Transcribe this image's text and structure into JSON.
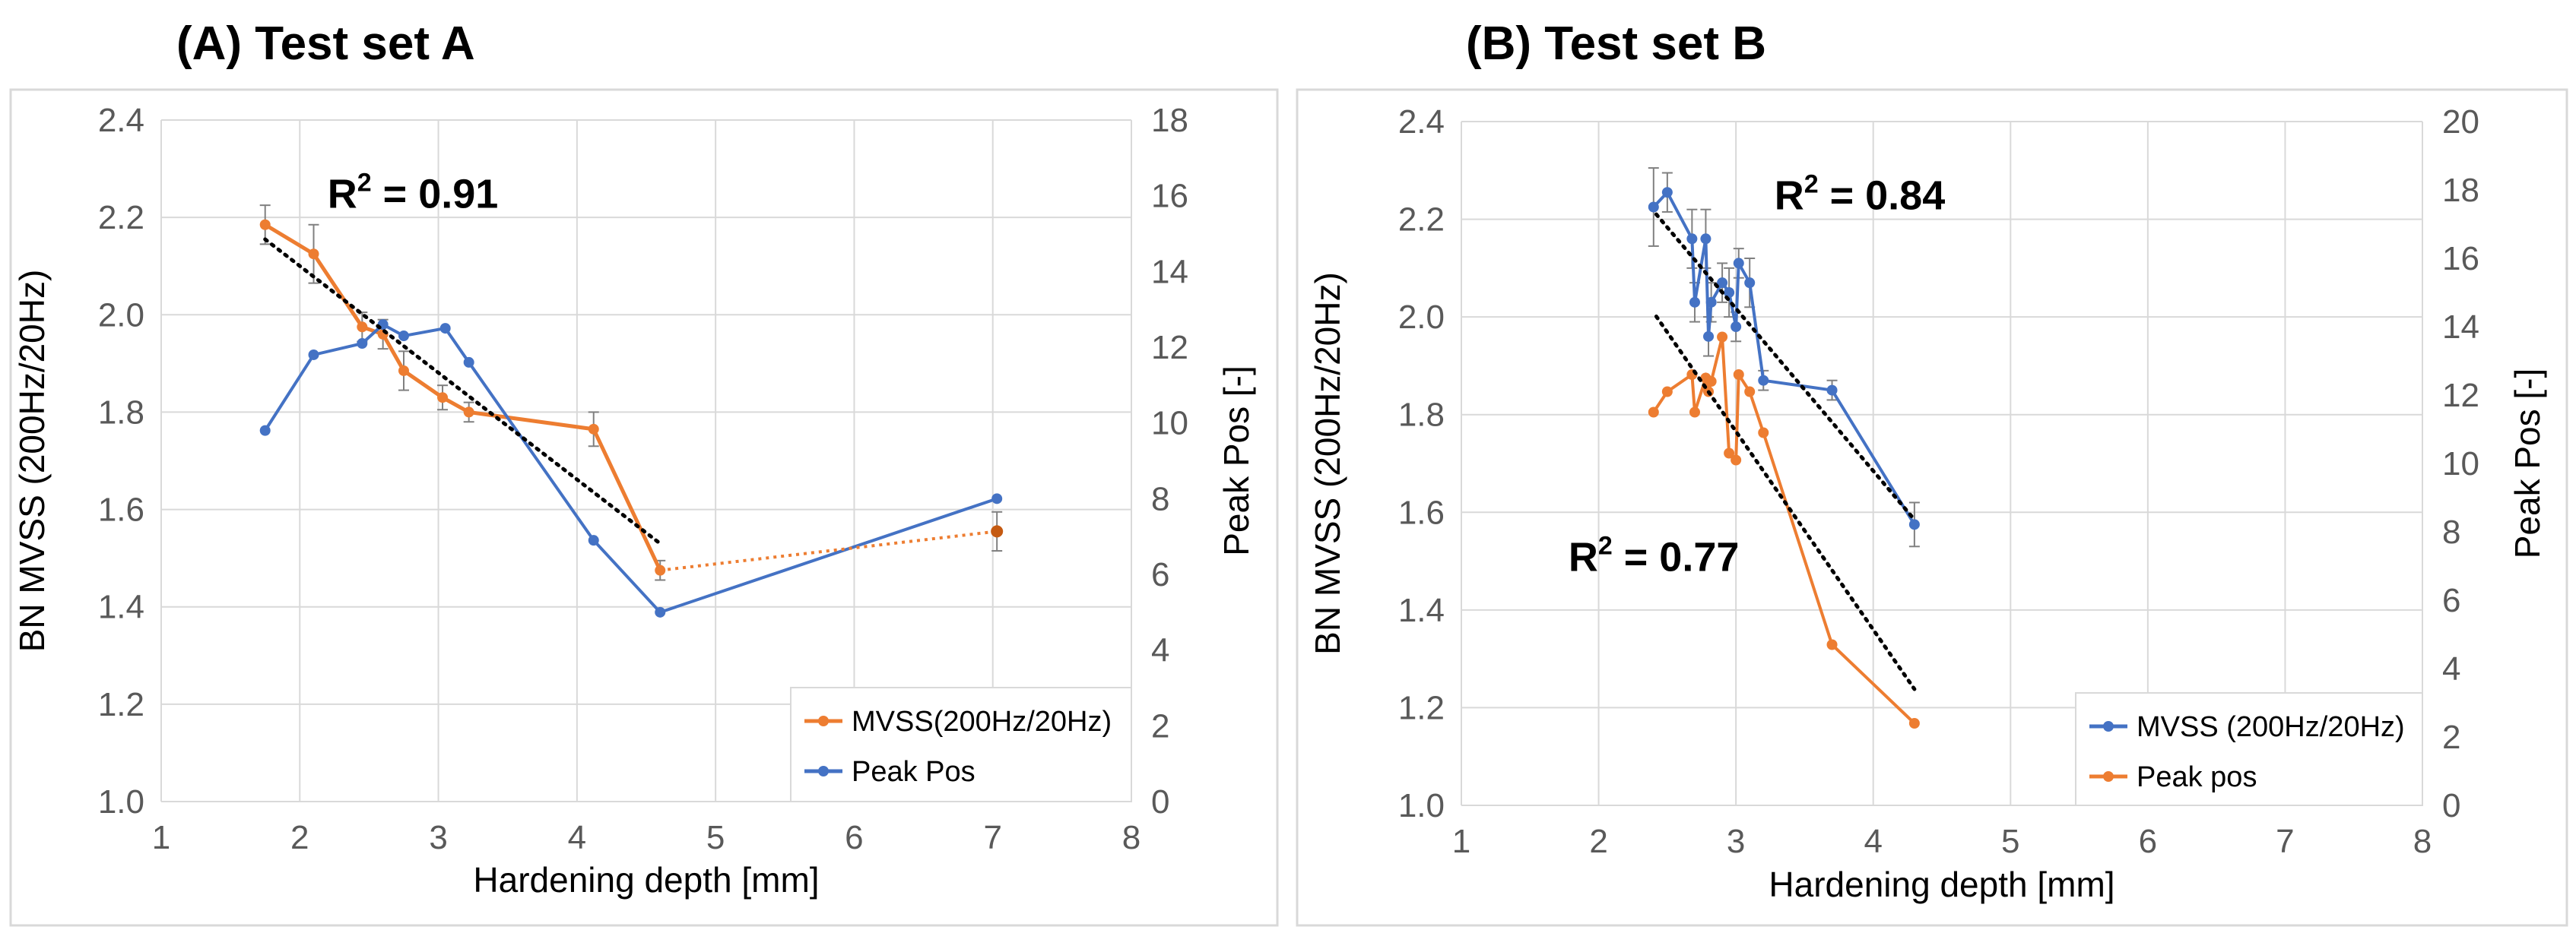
{
  "colors": {
    "orange": "#ED7D31",
    "blue": "#4472C4",
    "trend": "#000000",
    "error": "#808080",
    "grid": "#D9D9D9"
  },
  "chart_data": [
    {
      "type": "line",
      "id": "A",
      "title": "(A) Test set A",
      "xlabel": "Hardening depth [mm]",
      "ylabel_left": "BN MVSS (200Hz/20Hz)",
      "ylabel_right": "Peak Pos [-]",
      "xlim": [
        1,
        8
      ],
      "ylim_left": [
        1.0,
        2.4
      ],
      "ylim_right": [
        0,
        18
      ],
      "x_ticks": [
        "1",
        "2",
        "3",
        "4",
        "5",
        "6",
        "7",
        "8"
      ],
      "y_left_ticks": [
        "1.0",
        "1.2",
        "1.4",
        "1.6",
        "1.8",
        "2.0",
        "2.2",
        "2.4"
      ],
      "y_right_ticks": [
        "0",
        "2",
        "4",
        "6",
        "8",
        "10",
        "12",
        "14",
        "16",
        "18"
      ],
      "annotations": [
        {
          "r2_label": "R",
          "r2_sup": "2",
          "r2_value": " = 0.91",
          "x": 2.2,
          "y": 2.22
        }
      ],
      "legend": [
        "MVSS(200Hz/20Hz)",
        "Peak Pos"
      ],
      "series": [
        {
          "name": "MVSS(200Hz/20Hz)",
          "axis": "left",
          "color": "orange",
          "x": [
            1.75,
            2.1,
            2.45,
            2.6,
            2.75,
            3.03,
            3.22,
            4.12,
            4.6
          ],
          "y": [
            2.185,
            2.125,
            1.975,
            1.96,
            1.885,
            1.83,
            1.8,
            1.765,
            1.475
          ],
          "err": [
            0.04,
            0.06,
            0.03,
            0.03,
            0.04,
            0.025,
            0.02,
            0.035,
            0.02
          ]
        },
        {
          "name": "Peak Pos",
          "axis": "right",
          "color": "blue",
          "x": [
            1.75,
            2.1,
            2.45,
            2.6,
            2.75,
            3.05,
            3.22,
            4.12,
            4.6,
            7.03
          ],
          "y": [
            9.8,
            11.8,
            12.1,
            12.6,
            12.3,
            12.5,
            11.6,
            6.9,
            5.0,
            8.0
          ]
        }
      ],
      "extra_segments": [
        {
          "series": "MVSS(200Hz/20Hz)",
          "style": "dotted",
          "x": [
            4.6,
            7.03
          ],
          "y": [
            1.475,
            1.555
          ],
          "err_end": 0.04
        }
      ],
      "trendlines": [
        {
          "axis": "left",
          "x": [
            1.75,
            4.6
          ],
          "y": [
            2.155,
            1.53
          ]
        }
      ]
    },
    {
      "type": "line",
      "id": "B",
      "title": "(B) Test set B",
      "xlabel": "Hardening depth [mm]",
      "ylabel_left": "BN MVSS (200Hz/20Hz)",
      "ylabel_right": "Peak Pos [-]",
      "xlim": [
        1,
        8
      ],
      "ylim_left": [
        1.0,
        2.4
      ],
      "ylim_right": [
        0,
        20
      ],
      "x_ticks": [
        "1",
        "2",
        "3",
        "4",
        "5",
        "6",
        "7",
        "8"
      ],
      "y_left_ticks": [
        "1.0",
        "1.2",
        "1.4",
        "1.6",
        "1.8",
        "2.0",
        "2.2",
        "2.4"
      ],
      "y_right_ticks": [
        "0",
        "2",
        "4",
        "6",
        "8",
        "10",
        "12",
        "14",
        "16",
        "18",
        "20"
      ],
      "annotations": [
        {
          "r2_label": "R",
          "r2_sup": "2",
          "r2_value": " = 0.84",
          "x": 3.28,
          "y": 2.22
        },
        {
          "r2_label": "R",
          "r2_sup": "2",
          "r2_value": " = 0.77",
          "x": 1.78,
          "y": 1.48
        }
      ],
      "legend": [
        "MVSS (200Hz/20Hz)",
        "Peak pos"
      ],
      "series": [
        {
          "name": "MVSS (200Hz/20Hz)",
          "axis": "left",
          "color": "blue",
          "x": [
            2.4,
            2.5,
            2.68,
            2.7,
            2.78,
            2.8,
            2.82,
            2.9,
            2.95,
            3.0,
            3.02,
            3.1,
            3.2,
            3.7,
            4.3
          ],
          "y": [
            2.225,
            2.255,
            2.16,
            2.03,
            2.16,
            1.96,
            2.03,
            2.07,
            2.05,
            1.98,
            2.11,
            2.07,
            1.87,
            1.85,
            1.575
          ],
          "err": [
            0.08,
            0.04,
            0.06,
            0.04,
            0.06,
            0.04,
            0.04,
            0.04,
            0.05,
            0.03,
            0.03,
            0.05,
            0.02,
            0.02,
            0.045
          ]
        },
        {
          "name": "Peak pos",
          "axis": "right",
          "color": "orange",
          "x": [
            2.4,
            2.5,
            2.68,
            2.7,
            2.78,
            2.8,
            2.82,
            2.9,
            2.95,
            3.0,
            3.02,
            3.1,
            3.2,
            3.7,
            4.3
          ],
          "y": [
            11.5,
            12.1,
            12.6,
            11.5,
            12.5,
            12.1,
            12.4,
            13.7,
            10.3,
            10.1,
            12.6,
            12.1,
            10.9,
            4.7,
            2.4
          ]
        }
      ],
      "trendlines": [
        {
          "axis": "left",
          "x": [
            2.42,
            4.3
          ],
          "y": [
            2.21,
            1.585
          ]
        },
        {
          "axis": "right",
          "x": [
            2.42,
            4.3
          ],
          "y": [
            14.3,
            3.4
          ]
        }
      ]
    }
  ]
}
